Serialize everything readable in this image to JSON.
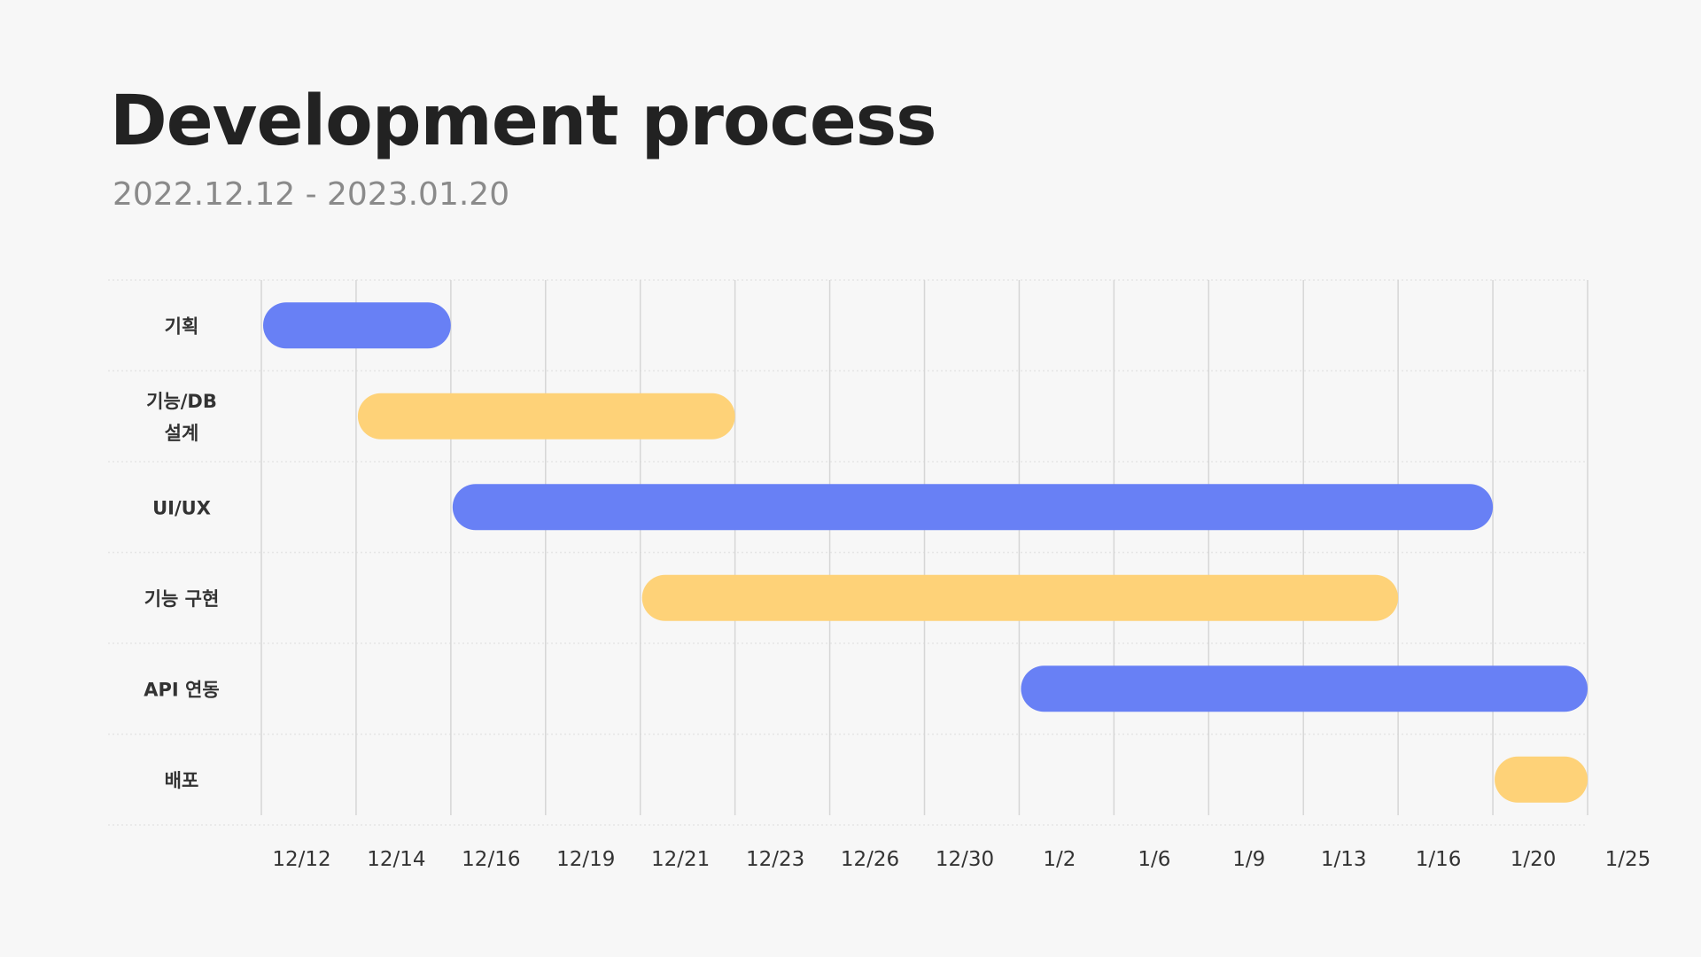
{
  "header": {
    "title": "Development process",
    "subtitle": "2022.12.12 - 2023.01.20"
  },
  "colors": {
    "blue": "#6880f5",
    "yellow": "#fed278",
    "grid": "#d6d6d6",
    "row_separator": "#e6e6e6",
    "label": "#333333",
    "tick": "#333333"
  },
  "chart_data": {
    "type": "gantt",
    "title": "Development process",
    "subtitle": "2022.12.12 - 2023.01.20",
    "columns": [
      "12/12",
      "12/14",
      "12/16",
      "12/19",
      "12/21",
      "12/23",
      "12/26",
      "12/30",
      "1/2",
      "1/6",
      "1/9",
      "1/13",
      "1/16",
      "1/20",
      "1/25"
    ],
    "tasks": [
      {
        "label_lines": [
          "기획"
        ],
        "start": "12/12",
        "end": "12/16",
        "color": "#6880f5"
      },
      {
        "label_lines": [
          "기능/DB",
          "설계"
        ],
        "start": "12/14",
        "end": "12/23",
        "color": "#fed278"
      },
      {
        "label_lines": [
          "UI/UX"
        ],
        "start": "12/16",
        "end": "1/20",
        "color": "#6880f5"
      },
      {
        "label_lines": [
          "기능 구현"
        ],
        "start": "12/21",
        "end": "1/16",
        "color": "#fed278"
      },
      {
        "label_lines": [
          "API 연동"
        ],
        "start": "1/2",
        "end": "1/25",
        "color": "#6880f5"
      },
      {
        "label_lines": [
          "배포"
        ],
        "start": "1/20",
        "end": "1/25",
        "color": "#fed278"
      }
    ],
    "grid": true,
    "legend": "none"
  }
}
